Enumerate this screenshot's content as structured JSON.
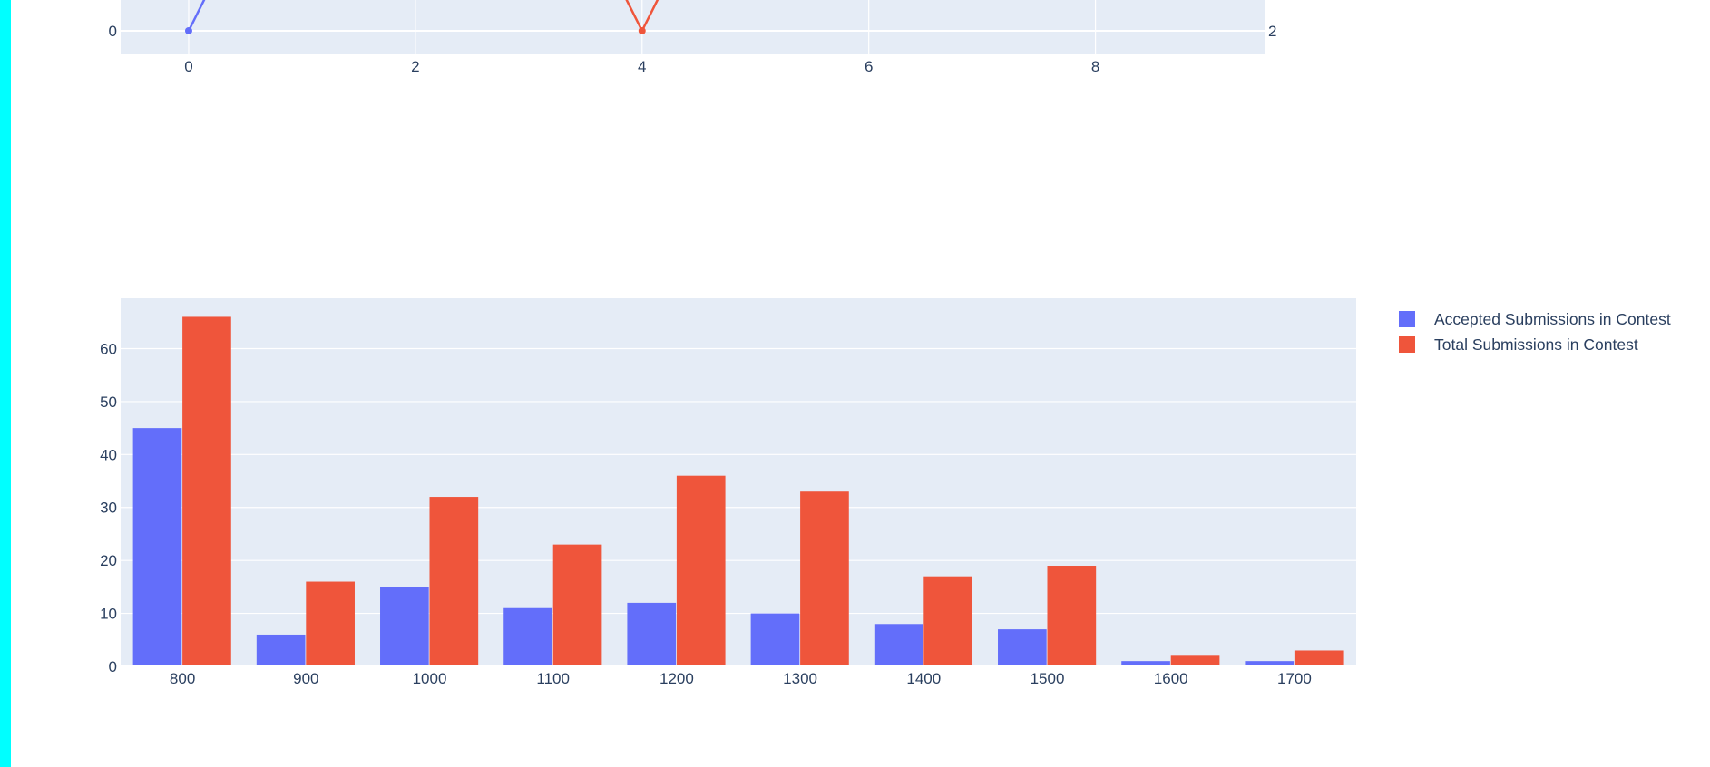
{
  "chart_data": [
    {
      "type": "line",
      "x_ticks": [
        "0",
        "2",
        "4",
        "6",
        "8"
      ],
      "y_left_ticks": [
        "0"
      ],
      "y_right_ticks": [
        "2"
      ],
      "xlim": [
        -0.6,
        9.5
      ],
      "series": [
        {
          "color": "#636efa",
          "x": [
            0,
            0.15
          ],
          "y": [
            0,
            0.25
          ]
        },
        {
          "color": "#ef553b",
          "x": [
            3.85,
            4,
            4.15
          ],
          "y": [
            0.25,
            0,
            0.25
          ]
        }
      ],
      "grid": true
    },
    {
      "type": "bar",
      "categories": [
        "800",
        "900",
        "1000",
        "1100",
        "1200",
        "1300",
        "1400",
        "1500",
        "1600",
        "1700"
      ],
      "series": [
        {
          "name": "Accepted Submissions in Contest",
          "color": "#636efa",
          "values": [
            45,
            6,
            15,
            11,
            12,
            10,
            8,
            7,
            1,
            1
          ]
        },
        {
          "name": "Total Submissions in Contest",
          "color": "#ef553b",
          "values": [
            66,
            16,
            32,
            23,
            36,
            33,
            17,
            19,
            2,
            3
          ]
        }
      ],
      "y_ticks": [
        "0",
        "10",
        "20",
        "30",
        "40",
        "50",
        "60"
      ],
      "ylim": [
        0,
        69.5
      ],
      "grid": true,
      "legend_position": "top-right"
    }
  ],
  "colors": {
    "plot_bg": "#e5ecf6",
    "grid": "#ffffff",
    "text": "#2a3f5f",
    "left_strip": "#00ffff"
  }
}
